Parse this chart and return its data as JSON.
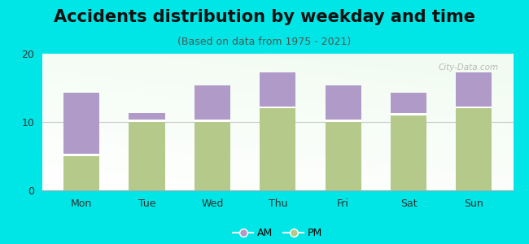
{
  "categories": [
    "Mon",
    "Tue",
    "Wed",
    "Thu",
    "Fri",
    "Sat",
    "Sun"
  ],
  "pm_values": [
    5,
    10,
    10,
    12,
    10,
    11,
    12
  ],
  "am_values": [
    9,
    1,
    5,
    5,
    5,
    3,
    5
  ],
  "pm_color": "#b5c98a",
  "am_color": "#b09ac8",
  "title": "Accidents distribution by weekday and time",
  "subtitle": "(Based on data from 1975 - 2021)",
  "ylim": [
    0,
    20
  ],
  "yticks": [
    0,
    10,
    20
  ],
  "background_color": "#00e5e5",
  "legend_labels": [
    "AM",
    "PM"
  ],
  "watermark": "City-Data.com",
  "title_fontsize": 15,
  "subtitle_fontsize": 9,
  "tick_fontsize": 9,
  "legend_fontsize": 9,
  "bar_width": 0.55
}
